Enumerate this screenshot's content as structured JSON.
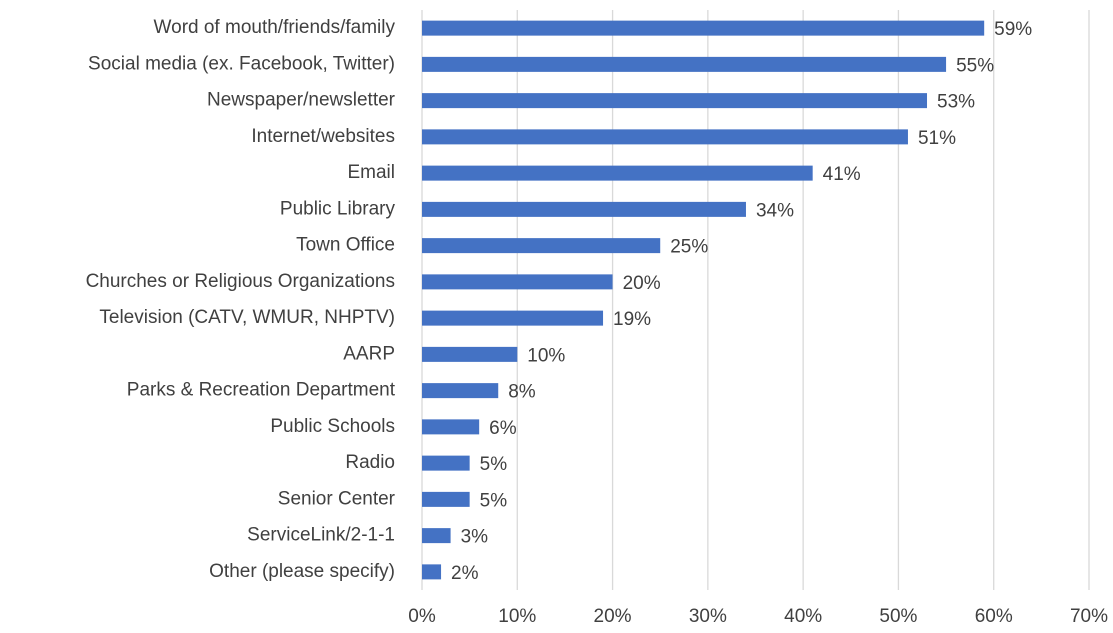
{
  "chart_data": {
    "type": "barh",
    "categories": [
      "Word of mouth/friends/family",
      "Social media (ex. Facebook, Twitter)",
      "Newspaper/newsletter",
      "Internet/websites",
      "Email",
      "Public Library",
      "Town Office",
      "Churches or Religious Organizations",
      "Television (CATV, WMUR, NHPTV)",
      "AARP",
      "Parks & Recreation Department",
      "Public Schools",
      "Radio",
      "Senior Center",
      "ServiceLink/2-1-1",
      "Other (please specify)"
    ],
    "values": [
      59,
      55,
      53,
      51,
      41,
      34,
      25,
      20,
      19,
      10,
      8,
      6,
      5,
      5,
      3,
      2
    ],
    "value_labels": [
      "59%",
      "55%",
      "53%",
      "51%",
      "41%",
      "34%",
      "25%",
      "20%",
      "19%",
      "10%",
      "8%",
      "6%",
      "5%",
      "5%",
      "3%",
      "2%"
    ],
    "color": "#4472c4",
    "xlim": [
      0,
      70
    ],
    "xticks": [
      {
        "value": 0,
        "label": "0%"
      },
      {
        "value": 10,
        "label": "10%"
      },
      {
        "value": 20,
        "label": "20%"
      },
      {
        "value": 30,
        "label": "30%"
      },
      {
        "value": 40,
        "label": "40%"
      },
      {
        "value": 50,
        "label": "50%"
      },
      {
        "value": 60,
        "label": "60%"
      },
      {
        "value": 70,
        "label": "70%"
      }
    ],
    "grid": true
  }
}
